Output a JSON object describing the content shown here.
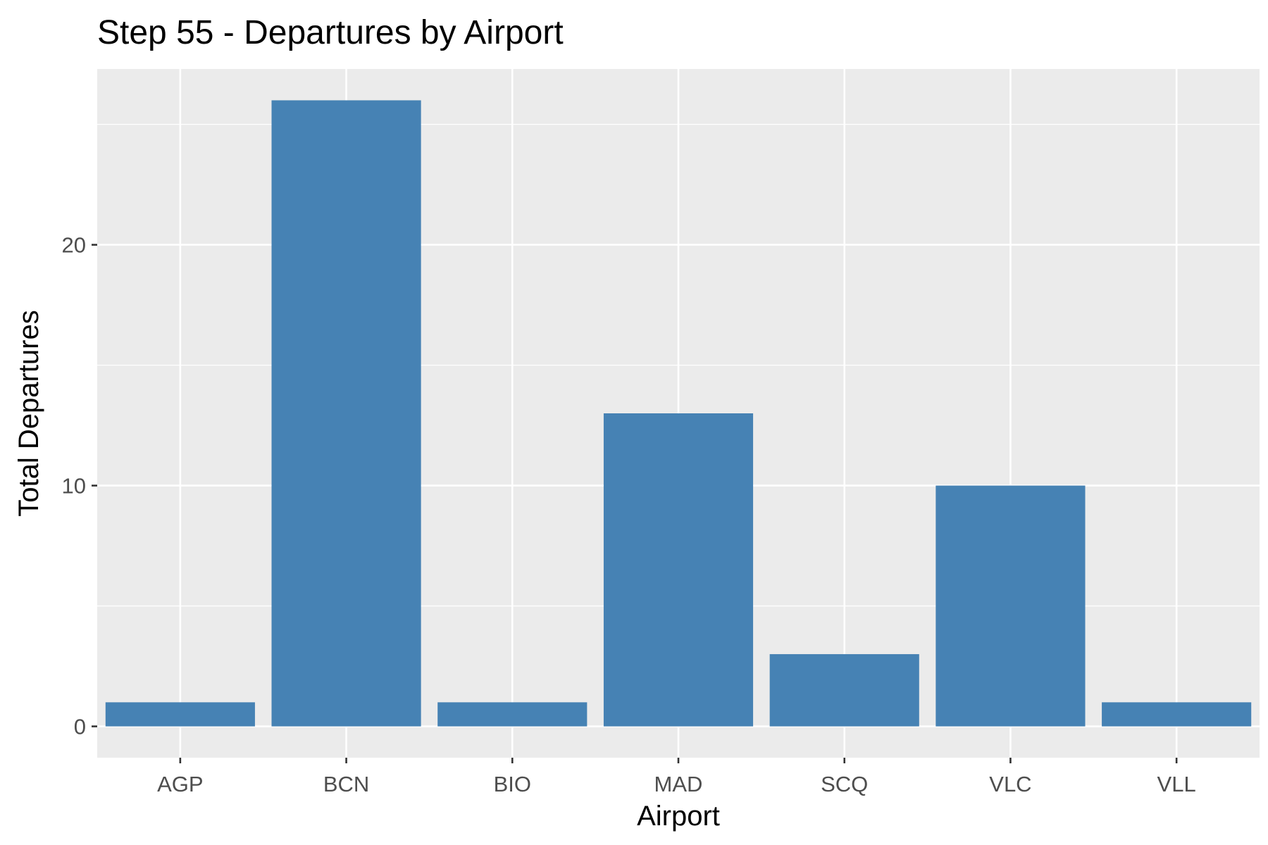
{
  "chart_data": {
    "type": "bar",
    "title": "Step 55 - Departures by Airport",
    "xlabel": "Airport",
    "ylabel": "Total Departures",
    "categories": [
      "AGP",
      "BCN",
      "BIO",
      "MAD",
      "SCQ",
      "VLC",
      "VLL"
    ],
    "values": [
      1,
      26,
      1,
      13,
      3,
      10,
      1
    ],
    "ylim": [
      -1.3,
      27.3
    ],
    "yticks": [
      0,
      10,
      20
    ],
    "yticks_minor": [
      5,
      15,
      25
    ],
    "grid": true,
    "legend": "none",
    "colors": {
      "bar": "#4682b4",
      "panel": "#ebebeb",
      "grid": "#ffffff",
      "tick_text": "#4d4d4d",
      "tick_mark": "#333333"
    }
  }
}
